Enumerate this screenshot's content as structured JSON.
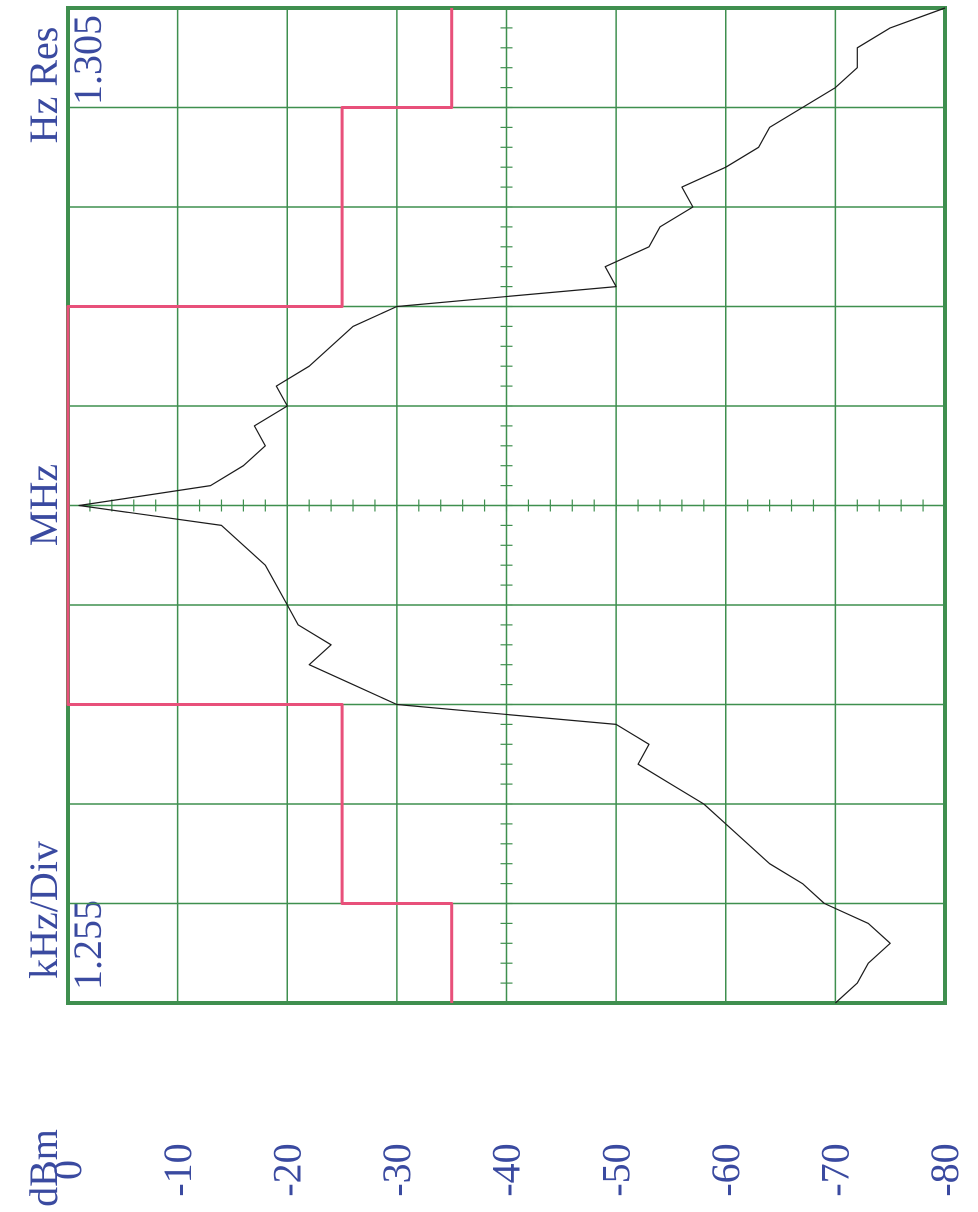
{
  "chart_data": {
    "type": "line",
    "annotations": [
      "kHz/Div",
      "MHz",
      "Hz Res"
    ],
    "y_label": "dBm",
    "xlim": [
      1.255,
      1.305
    ],
    "ylim": [
      0,
      -80
    ],
    "yticks": [
      0,
      -10,
      -20,
      -30,
      -40,
      -50,
      -60,
      -70,
      -80
    ],
    "x_divisions": 10,
    "minor_per_division": 5,
    "grid": true,
    "grid_color": "#3f8f4f",
    "series": [
      {
        "color": "#1a1a1a",
        "x": [
          1.255,
          1.256,
          1.257,
          1.258,
          1.259,
          1.26,
          1.261,
          1.262,
          1.263,
          1.264,
          1.265,
          1.266,
          1.267,
          1.268,
          1.269,
          1.27,
          1.271,
          1.272,
          1.273,
          1.274,
          1.275,
          1.276,
          1.277,
          1.278,
          1.279,
          1.28,
          1.281,
          1.282,
          1.283,
          1.284,
          1.285,
          1.286,
          1.287,
          1.288,
          1.289,
          1.29,
          1.291,
          1.292,
          1.293,
          1.294,
          1.295,
          1.296,
          1.297,
          1.298,
          1.299,
          1.3,
          1.301,
          1.302,
          1.303,
          1.304,
          1.305
        ],
        "values": [
          -70,
          -72,
          -73,
          -75,
          -73,
          -69,
          -67,
          -64,
          -62,
          -60,
          -58,
          -55,
          -52,
          -53,
          -50,
          -30,
          -26,
          -22,
          -24,
          -21,
          -20,
          -19,
          -18,
          -16,
          -14,
          -1,
          -13,
          -16,
          -18,
          -17,
          -20,
          -19,
          -22,
          -24,
          -26,
          -30,
          -50,
          -49,
          -53,
          -54,
          -57,
          -56,
          -60,
          -63,
          -64,
          -67,
          -70,
          -72,
          -72,
          -75,
          -80
        ]
      },
      {
        "color": "#e8507a",
        "x": [
          1.255,
          1.26,
          1.26,
          1.27,
          1.27,
          1.29,
          1.29,
          1.3,
          1.3,
          1.305
        ],
        "values": [
          -35,
          -35,
          -25,
          -25,
          0,
          0,
          -25,
          -25,
          -35,
          -35
        ]
      }
    ]
  }
}
